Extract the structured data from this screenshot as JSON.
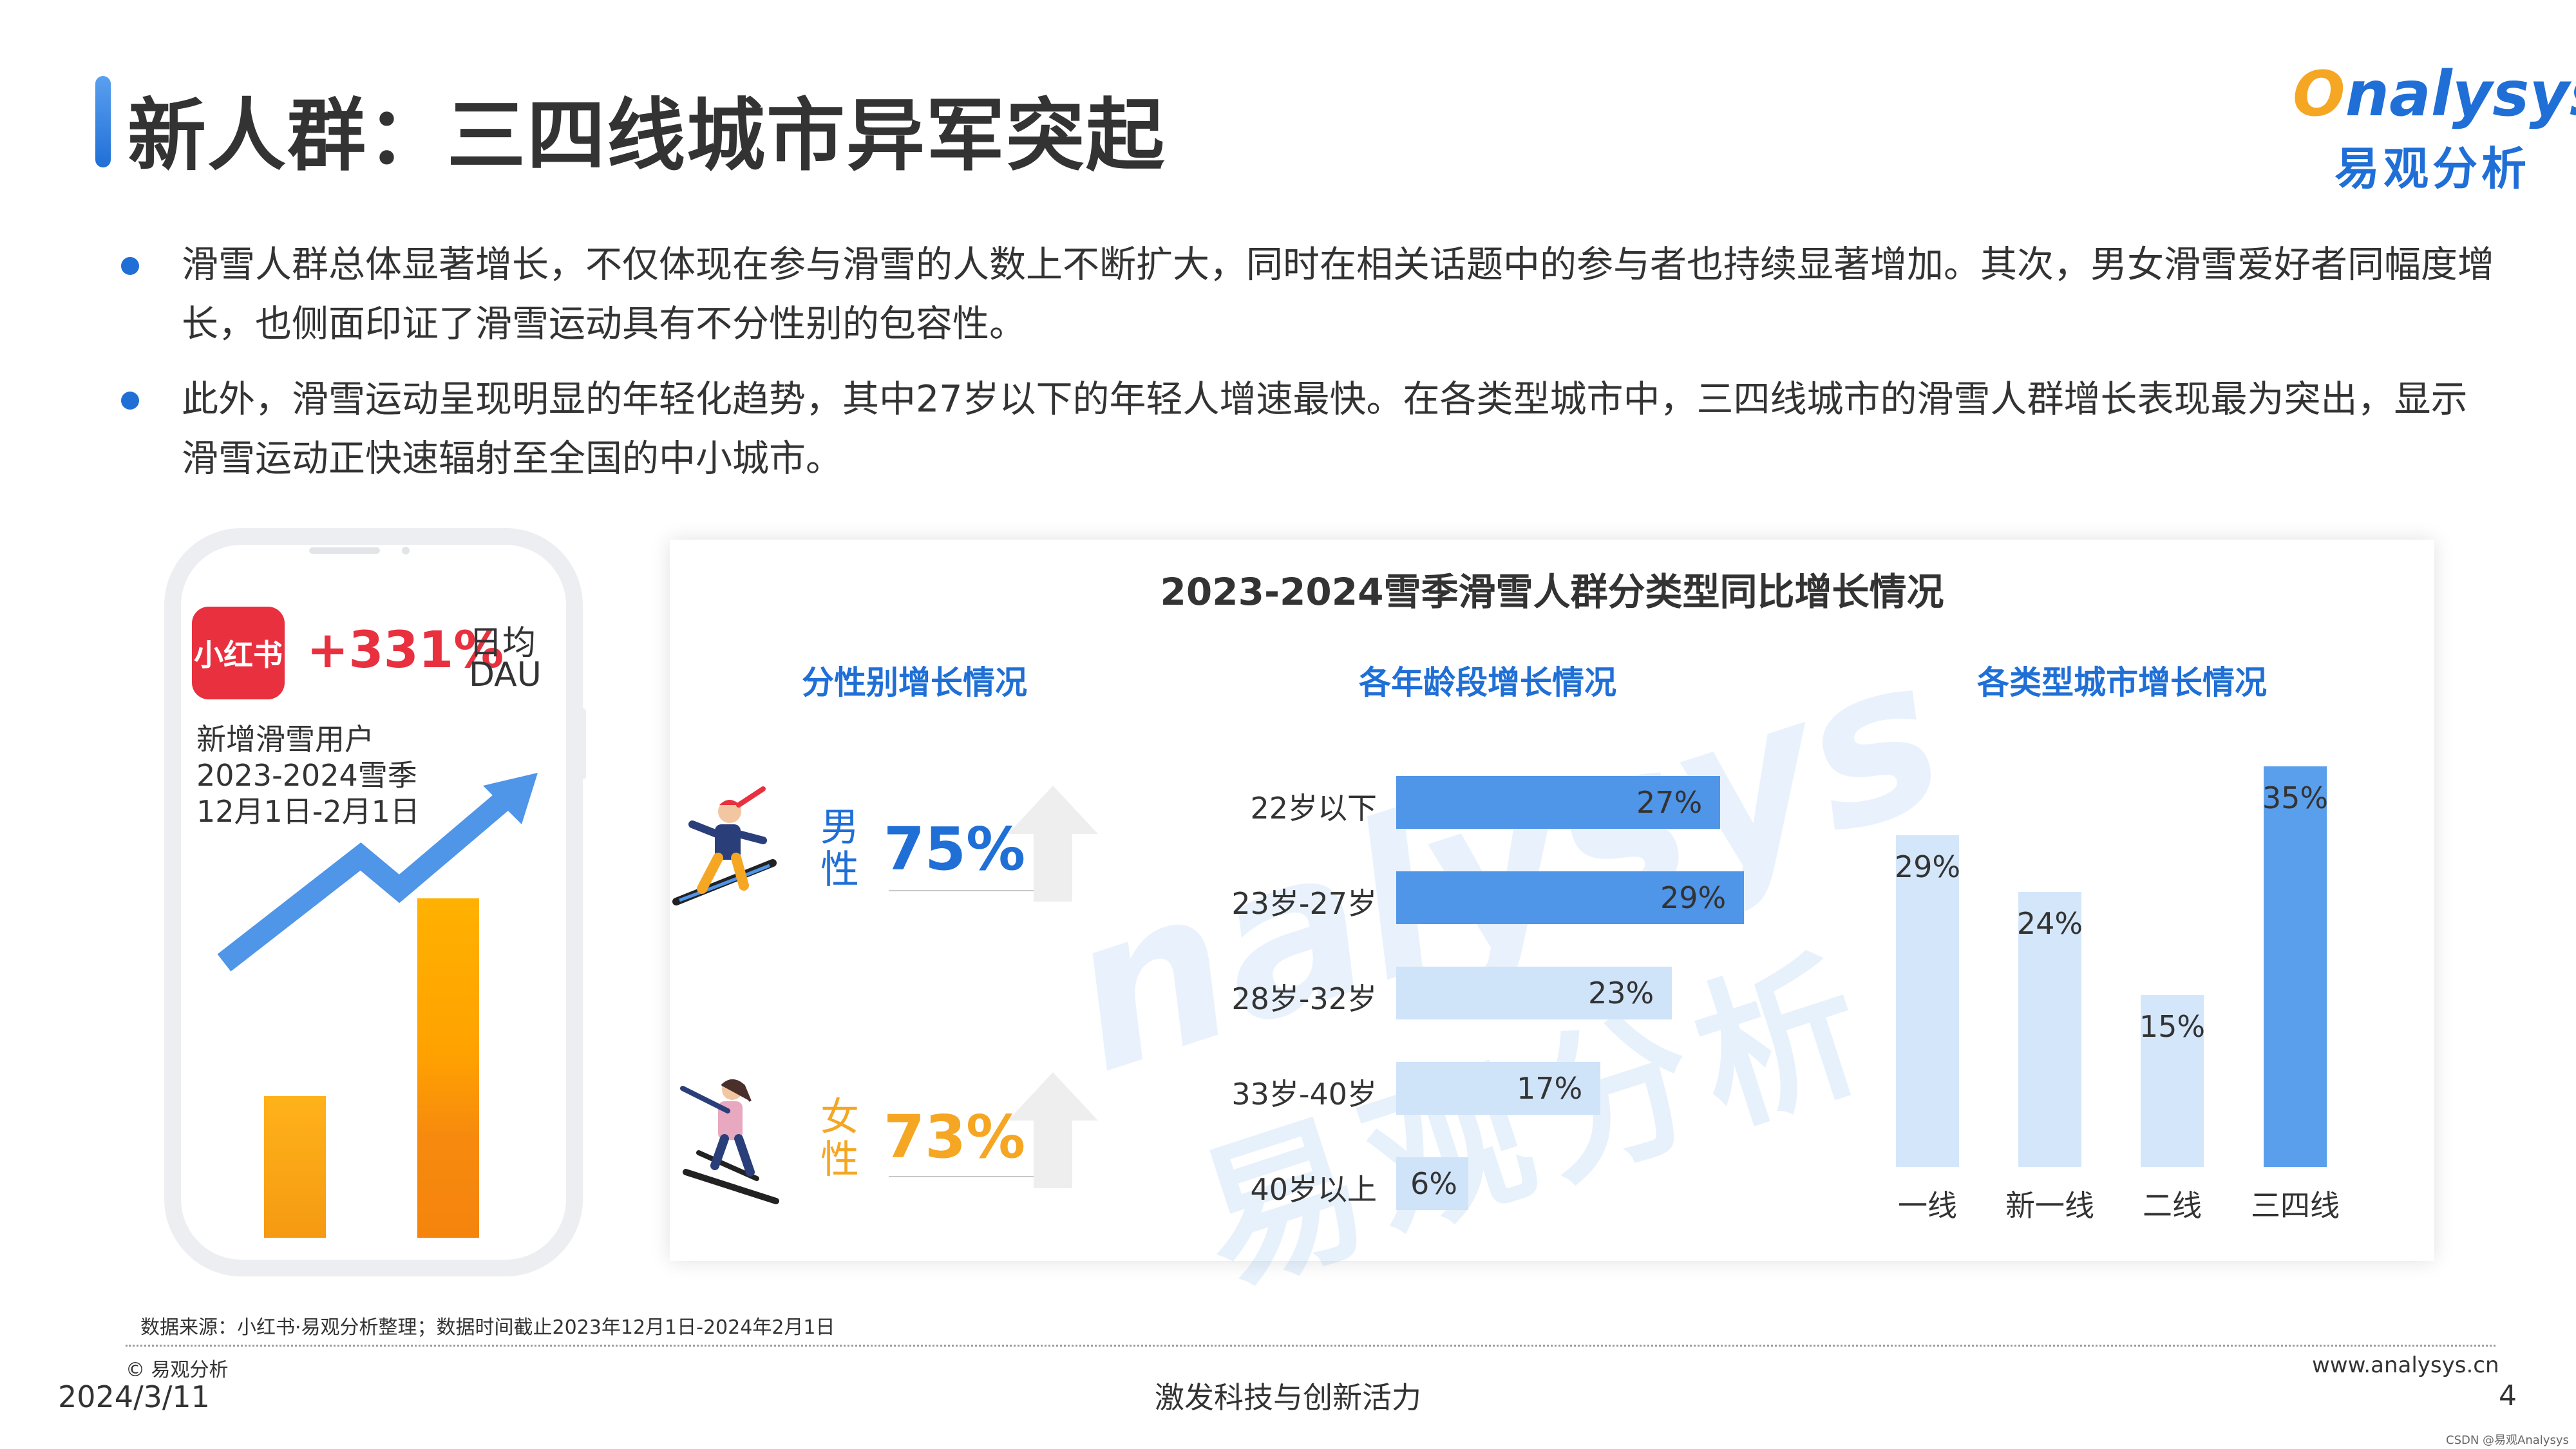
{
  "header": {
    "title": "新人群：三四线城市异军突起",
    "logo_en_first": "O",
    "logo_en_rest": "nalysys",
    "logo_cn": "易观分析"
  },
  "bullets": [
    "滑雪人群总体显著增长，不仅体现在参与滑雪的人数上不断扩大，同时在相关话题中的参与者也持续显著增加。其次，男女滑雪爱好者同幅度增长，也侧面印证了滑雪运动具有不分性别的包容性。",
    "此外，滑雪运动呈现明显的年轻化趋势，其中27岁以下的年轻人增速最快。在各类型城市中，三四线城市的滑雪人群增长表现最为突出，显示滑雪运动正快速辐射至全国的中小城市。"
  ],
  "phone_card": {
    "app_name": "小红书",
    "growth": "+331%",
    "metric_line1": "日均",
    "metric_line2": "DAU",
    "note_line1": "新增滑雪用户",
    "note_line2": "2023-2024雪季",
    "note_line3": "12月1日-2月1日"
  },
  "chart_data": [
    {
      "type": "table",
      "title": "分性别增长情况",
      "rows": [
        {
          "label": "男性",
          "label_line1": "男",
          "label_line2": "性",
          "value": 75,
          "display": "75%",
          "color": "#1f6fd6"
        },
        {
          "label": "女性",
          "label_line1": "女",
          "label_line2": "性",
          "value": 73,
          "display": "73%",
          "color": "#f5a623"
        }
      ]
    },
    {
      "type": "bar",
      "orientation": "horizontal",
      "title": "各年龄段增长情况",
      "categories": [
        "22岁以下",
        "23岁-27岁",
        "28岁-32岁",
        "33岁-40岁",
        "40岁以上"
      ],
      "values": [
        27,
        29,
        23,
        17,
        6
      ],
      "labels": [
        "27%",
        "29%",
        "23%",
        "17%",
        "6%"
      ],
      "colors": [
        "#4f95e8",
        "#4f95e8",
        "#cfe3f9",
        "#cfe3f9",
        "#cfe3f9"
      ],
      "xlim": [
        0,
        29
      ]
    },
    {
      "type": "bar",
      "orientation": "vertical",
      "title": "各类型城市增长情况",
      "categories": [
        "一线",
        "新一线",
        "二线",
        "三四线"
      ],
      "values": [
        29,
        24,
        15,
        35
      ],
      "labels": [
        "29%",
        "24%",
        "15%",
        "35%"
      ],
      "colors": [
        "#d4e6fa",
        "#d4e6fa",
        "#d4e6fa",
        "#5a9fec"
      ],
      "ylim": [
        0,
        35
      ]
    }
  ],
  "main_chart_title": "2023-2024雪季滑雪人群分类型同比增长情况",
  "watermark": {
    "en": "nalysys",
    "cn": "易观分析"
  },
  "footer": {
    "source": "数据来源：小红书·易观分析整理；数据时间截止2023年12月1日-2024年2月1日",
    "copyright": "© 易观分析",
    "date": "2024/3/11",
    "slogan": "激发科技与创新活力",
    "url": "www.analysys.cn",
    "page": "4",
    "csdn": "CSDN @易观Analysys"
  }
}
